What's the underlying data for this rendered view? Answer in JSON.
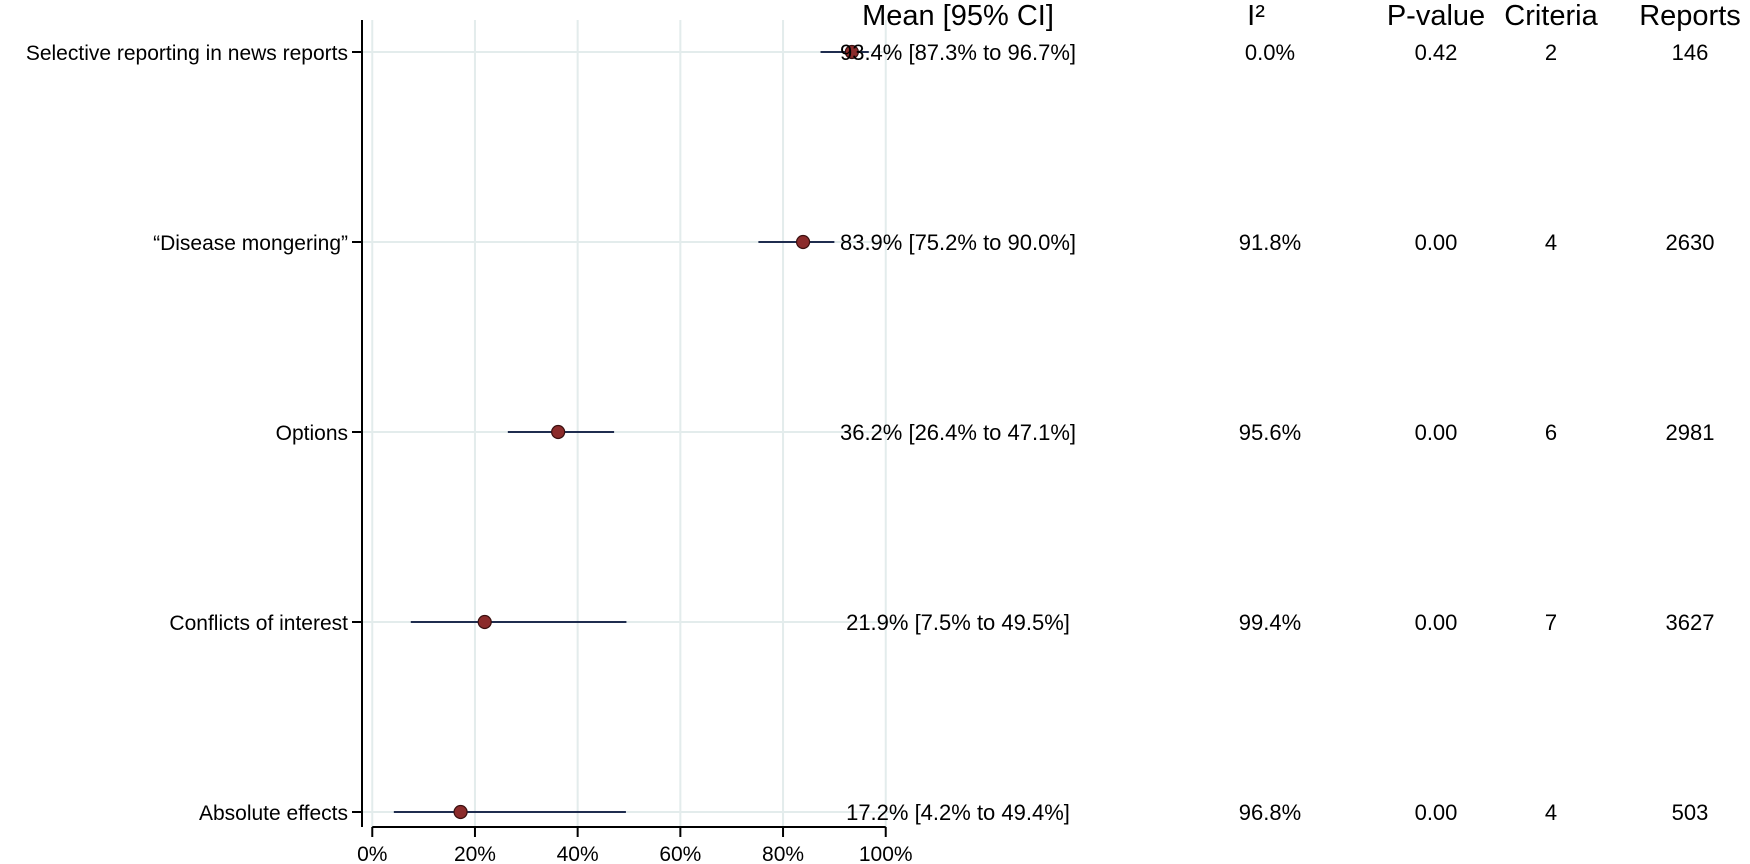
{
  "chart_data": {
    "type": "forest",
    "x_axis": {
      "range": [
        -2,
        102
      ],
      "ticks": [
        0,
        20,
        40,
        60,
        80,
        100
      ],
      "tick_labels": [
        "0%",
        "20%",
        "40%",
        "60%",
        "80%",
        "100%"
      ],
      "grid": true
    },
    "columns": {
      "mean_ci": "Mean [95% CI]",
      "i2": "I²",
      "pvalue": "P-value",
      "criteria": "Criteria",
      "reports": "Reports"
    },
    "rows": [
      {
        "label": "Selective reporting in news reports",
        "mean": 93.4,
        "lo": 87.3,
        "hi": 96.7,
        "mean_ci_text": "93.4% [87.3% to 96.7%]",
        "i2": "0.0%",
        "pvalue": "0.42",
        "criteria": "2",
        "reports": "146"
      },
      {
        "label": "“Disease mongering”",
        "mean": 83.9,
        "lo": 75.2,
        "hi": 90.0,
        "mean_ci_text": "83.9% [75.2% to 90.0%]",
        "i2": "91.8%",
        "pvalue": "0.00",
        "criteria": "4",
        "reports": "2630"
      },
      {
        "label": "Options",
        "mean": 36.2,
        "lo": 26.4,
        "hi": 47.1,
        "mean_ci_text": "36.2% [26.4% to 47.1%]",
        "i2": "95.6%",
        "pvalue": "0.00",
        "criteria": "6",
        "reports": "2981"
      },
      {
        "label": "Conflicts of interest",
        "mean": 21.9,
        "lo": 7.5,
        "hi": 49.5,
        "mean_ci_text": "21.9% [7.5% to 49.5%]",
        "i2": "99.4%",
        "pvalue": "0.00",
        "criteria": "7",
        "reports": "3627"
      },
      {
        "label": "Absolute effects",
        "mean": 17.2,
        "lo": 4.2,
        "hi": 49.4,
        "mean_ci_text": "17.2% [4.2% to 49.4%]",
        "i2": "96.8%",
        "pvalue": "0.00",
        "criteria": "4",
        "reports": "503"
      }
    ],
    "colors": {
      "point": "#8b2b2b",
      "ci": "#1f2d4f",
      "grid": "#e3ecec",
      "axis": "#000000"
    }
  }
}
